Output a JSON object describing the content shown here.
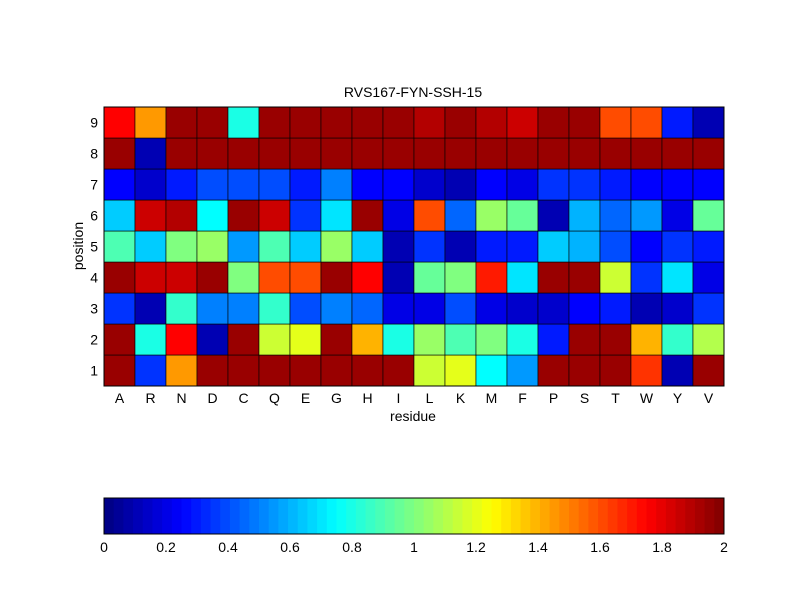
{
  "chart_data": {
    "type": "heatmap",
    "title": "RVS167-FYN-SSH-15",
    "xlabel": "residue",
    "ylabel": "position",
    "x_categories": [
      "A",
      "R",
      "N",
      "D",
      "C",
      "Q",
      "E",
      "G",
      "H",
      "I",
      "L",
      "K",
      "M",
      "F",
      "P",
      "S",
      "T",
      "W",
      "Y",
      "V"
    ],
    "y_categories": [
      "1",
      "2",
      "3",
      "4",
      "5",
      "6",
      "7",
      "8",
      "9"
    ],
    "values": [
      [
        1.95,
        0.35,
        1.45,
        1.95,
        1.95,
        1.95,
        1.95,
        1.95,
        1.95,
        1.95,
        1.15,
        1.2,
        0.75,
        0.55,
        1.95,
        1.95,
        1.95,
        1.65,
        0.1,
        1.95
      ],
      [
        1.95,
        0.8,
        1.75,
        0.1,
        1.95,
        1.15,
        1.2,
        1.95,
        1.4,
        0.8,
        1.05,
        0.9,
        1.0,
        0.8,
        0.3,
        1.95,
        1.95,
        1.4,
        0.85,
        1.1
      ],
      [
        0.35,
        0.1,
        0.85,
        0.5,
        0.5,
        0.85,
        0.4,
        0.5,
        0.45,
        0.2,
        0.2,
        0.4,
        0.2,
        0.15,
        0.15,
        0.25,
        0.3,
        0.1,
        0.15,
        0.35
      ],
      [
        1.95,
        1.85,
        1.85,
        1.95,
        1.0,
        1.6,
        1.6,
        1.95,
        1.75,
        0.1,
        0.95,
        1.0,
        1.7,
        0.7,
        1.95,
        1.95,
        1.15,
        0.35,
        0.7,
        0.2
      ],
      [
        0.9,
        0.65,
        1.0,
        1.05,
        0.55,
        0.9,
        0.65,
        1.05,
        0.65,
        0.1,
        0.35,
        0.1,
        0.3,
        0.3,
        0.65,
        0.6,
        0.4,
        0.25,
        0.35,
        0.3
      ],
      [
        0.65,
        1.85,
        1.9,
        0.75,
        1.95,
        1.85,
        0.35,
        0.7,
        1.95,
        0.2,
        1.6,
        0.45,
        1.05,
        0.95,
        0.1,
        0.6,
        0.45,
        0.55,
        0.2,
        0.95
      ],
      [
        0.25,
        0.15,
        0.3,
        0.4,
        0.4,
        0.4,
        0.3,
        0.5,
        0.25,
        0.25,
        0.15,
        0.1,
        0.25,
        0.2,
        0.35,
        0.35,
        0.3,
        0.25,
        0.25,
        0.25
      ],
      [
        1.95,
        0.1,
        1.95,
        1.95,
        1.95,
        1.95,
        1.95,
        1.95,
        1.95,
        1.95,
        1.95,
        1.95,
        1.95,
        1.95,
        1.95,
        1.95,
        1.95,
        1.95,
        1.95,
        1.95
      ],
      [
        1.75,
        1.45,
        1.95,
        1.95,
        0.8,
        1.95,
        1.95,
        1.95,
        1.95,
        1.95,
        1.9,
        1.95,
        1.9,
        1.85,
        1.95,
        1.95,
        1.6,
        1.6,
        0.3,
        0.1
      ]
    ],
    "colorbar": {
      "min": 0,
      "max": 2,
      "colormap": "jet",
      "steps": 64,
      "tick_values": [
        0,
        0.2,
        0.4,
        0.6,
        0.8,
        1,
        1.2,
        1.4,
        1.6,
        1.8,
        2
      ],
      "tick_labels": [
        "0",
        "0.2",
        "0.4",
        "0.6",
        "0.8",
        "1",
        "1.2",
        "1.4",
        "1.6",
        "1.8",
        "2"
      ]
    },
    "grid": true
  }
}
